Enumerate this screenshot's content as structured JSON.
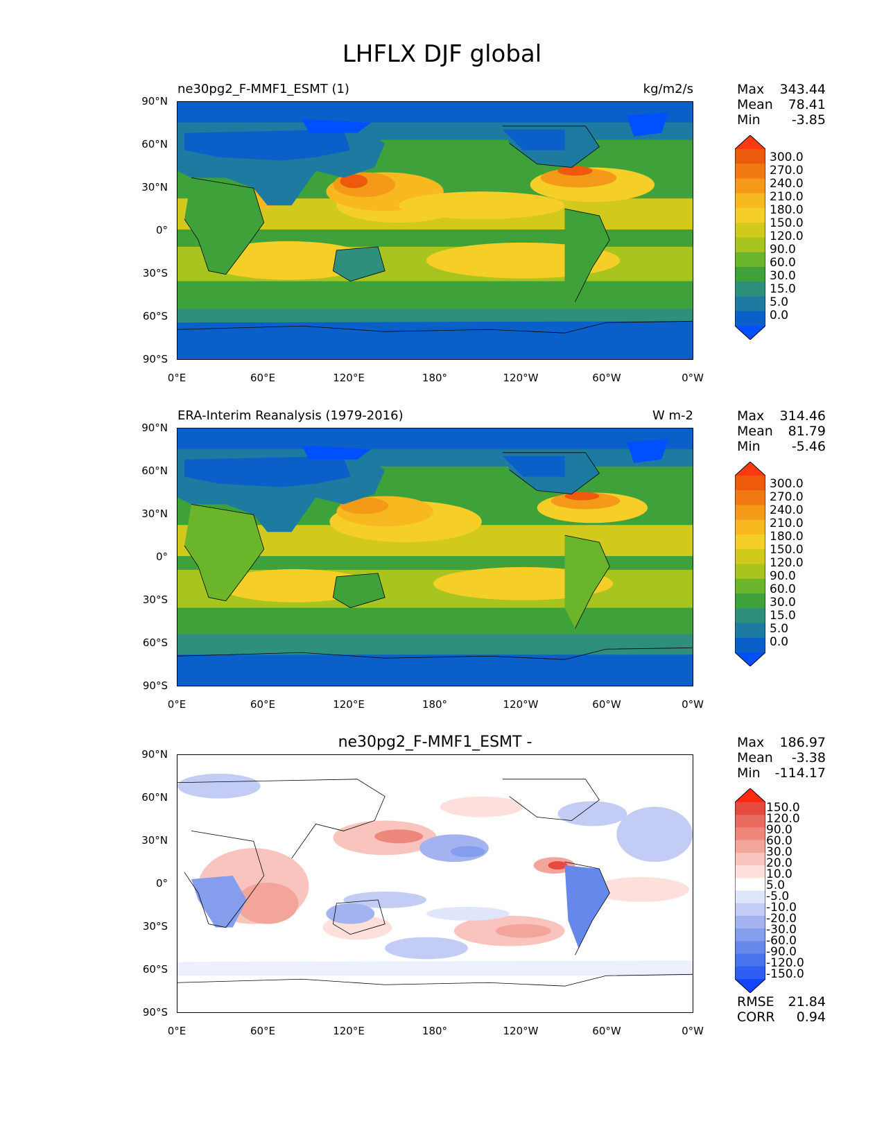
{
  "figure": {
    "title": "LHFLX DJF global"
  },
  "axes": {
    "y_ticks": [
      "90°N",
      "60°N",
      "30°N",
      "0°",
      "30°S",
      "60°S",
      "90°S"
    ],
    "x_ticks": [
      "0°E",
      "60°E",
      "120°E",
      "180°",
      "120°W",
      "60°W",
      "0°W"
    ]
  },
  "panels": [
    {
      "left_title": "ne30pg2_F-MMF1_ESMT (1)",
      "right_title": "kg/m2/s",
      "center_title": "",
      "stats": {
        "max_label": "Max",
        "max": "343.44",
        "mean_label": "Mean",
        "mean": "78.41",
        "min_label": "Min",
        "min": "-3.85"
      },
      "colorbar_labels": [
        "300.0",
        "270.0",
        "240.0",
        "210.0",
        "180.0",
        "150.0",
        "120.0",
        "90.0",
        "60.0",
        "30.0",
        "15.0",
        "5.0",
        "0.0"
      ]
    },
    {
      "left_title": "ERA-Interim Reanalysis (1979-2016)",
      "right_title": "W m-2",
      "center_title": "",
      "stats": {
        "max_label": "Max",
        "max": "314.46",
        "mean_label": "Mean",
        "mean": "81.79",
        "min_label": "Min",
        "min": "-5.46"
      },
      "colorbar_labels": [
        "300.0",
        "270.0",
        "240.0",
        "210.0",
        "180.0",
        "150.0",
        "120.0",
        "90.0",
        "60.0",
        "30.0",
        "15.0",
        "5.0",
        "0.0"
      ]
    },
    {
      "left_title": "",
      "right_title": "",
      "center_title": "ne30pg2_F-MMF1_ESMT -",
      "stats": {
        "max_label": "Max",
        "max": "186.97",
        "mean_label": "Mean",
        "mean": "-3.38",
        "min_label": "Min",
        "min": "-114.17"
      },
      "colorbar_labels": [
        "150.0",
        "120.0",
        "90.0",
        "60.0",
        "30.0",
        "20.0",
        "10.0",
        "5.0",
        "-5.0",
        "-10.0",
        "-20.0",
        "-30.0",
        "-60.0",
        "-90.0",
        "-120.0",
        "-150.0"
      ],
      "metrics": {
        "rmse_label": "RMSE",
        "rmse": "21.84",
        "corr_label": "CORR",
        "corr": "0.94"
      }
    }
  ],
  "colors": {
    "field_scale": [
      "#0050ff",
      "#0a5fc8",
      "#1d7aa0",
      "#2f8f7d",
      "#3fa13a",
      "#6ab52a",
      "#a8c41f",
      "#d2c91d",
      "#f5cf28",
      "#f7b820",
      "#f59a18",
      "#f27a12",
      "#ee5a0c",
      "#ff3a10"
    ],
    "diff_scale": [
      "#1444ff",
      "#2e5ef2",
      "#4a74ee",
      "#6688ea",
      "#849dec",
      "#a2b3ef",
      "#c2ccf4",
      "#e0e6fa",
      "#ffffff",
      "#fde0dc",
      "#f9c4bd",
      "#f4a59b",
      "#ee877b",
      "#e96a5e",
      "#e44b3e",
      "#ff2a10"
    ]
  },
  "chart_data": [
    {
      "type": "heatmap",
      "title": "ne30pg2_F-MMF1_ESMT (1)",
      "units": "kg/m2/s",
      "xlim": [
        0,
        360
      ],
      "ylim": [
        -90,
        90
      ],
      "levels": [
        0,
        5,
        15,
        30,
        60,
        90,
        120,
        150,
        180,
        210,
        240,
        270,
        300
      ],
      "max": 343.44,
      "mean": 78.41,
      "min": -3.85
    },
    {
      "type": "heatmap",
      "title": "ERA-Interim Reanalysis (1979-2016)",
      "units": "W m-2",
      "xlim": [
        0,
        360
      ],
      "ylim": [
        -90,
        90
      ],
      "levels": [
        0,
        5,
        15,
        30,
        60,
        90,
        120,
        150,
        180,
        210,
        240,
        270,
        300
      ],
      "max": 314.46,
      "mean": 81.79,
      "min": -5.46
    },
    {
      "type": "heatmap",
      "title": "ne30pg2_F-MMF1_ESMT -",
      "xlim": [
        0,
        360
      ],
      "ylim": [
        -90,
        90
      ],
      "levels": [
        -150,
        -120,
        -90,
        -60,
        -30,
        -20,
        -10,
        -5,
        5,
        10,
        20,
        30,
        60,
        90,
        120,
        150
      ],
      "max": 186.97,
      "mean": -3.38,
      "min": -114.17,
      "rmse": 21.84,
      "corr": 0.94
    }
  ]
}
